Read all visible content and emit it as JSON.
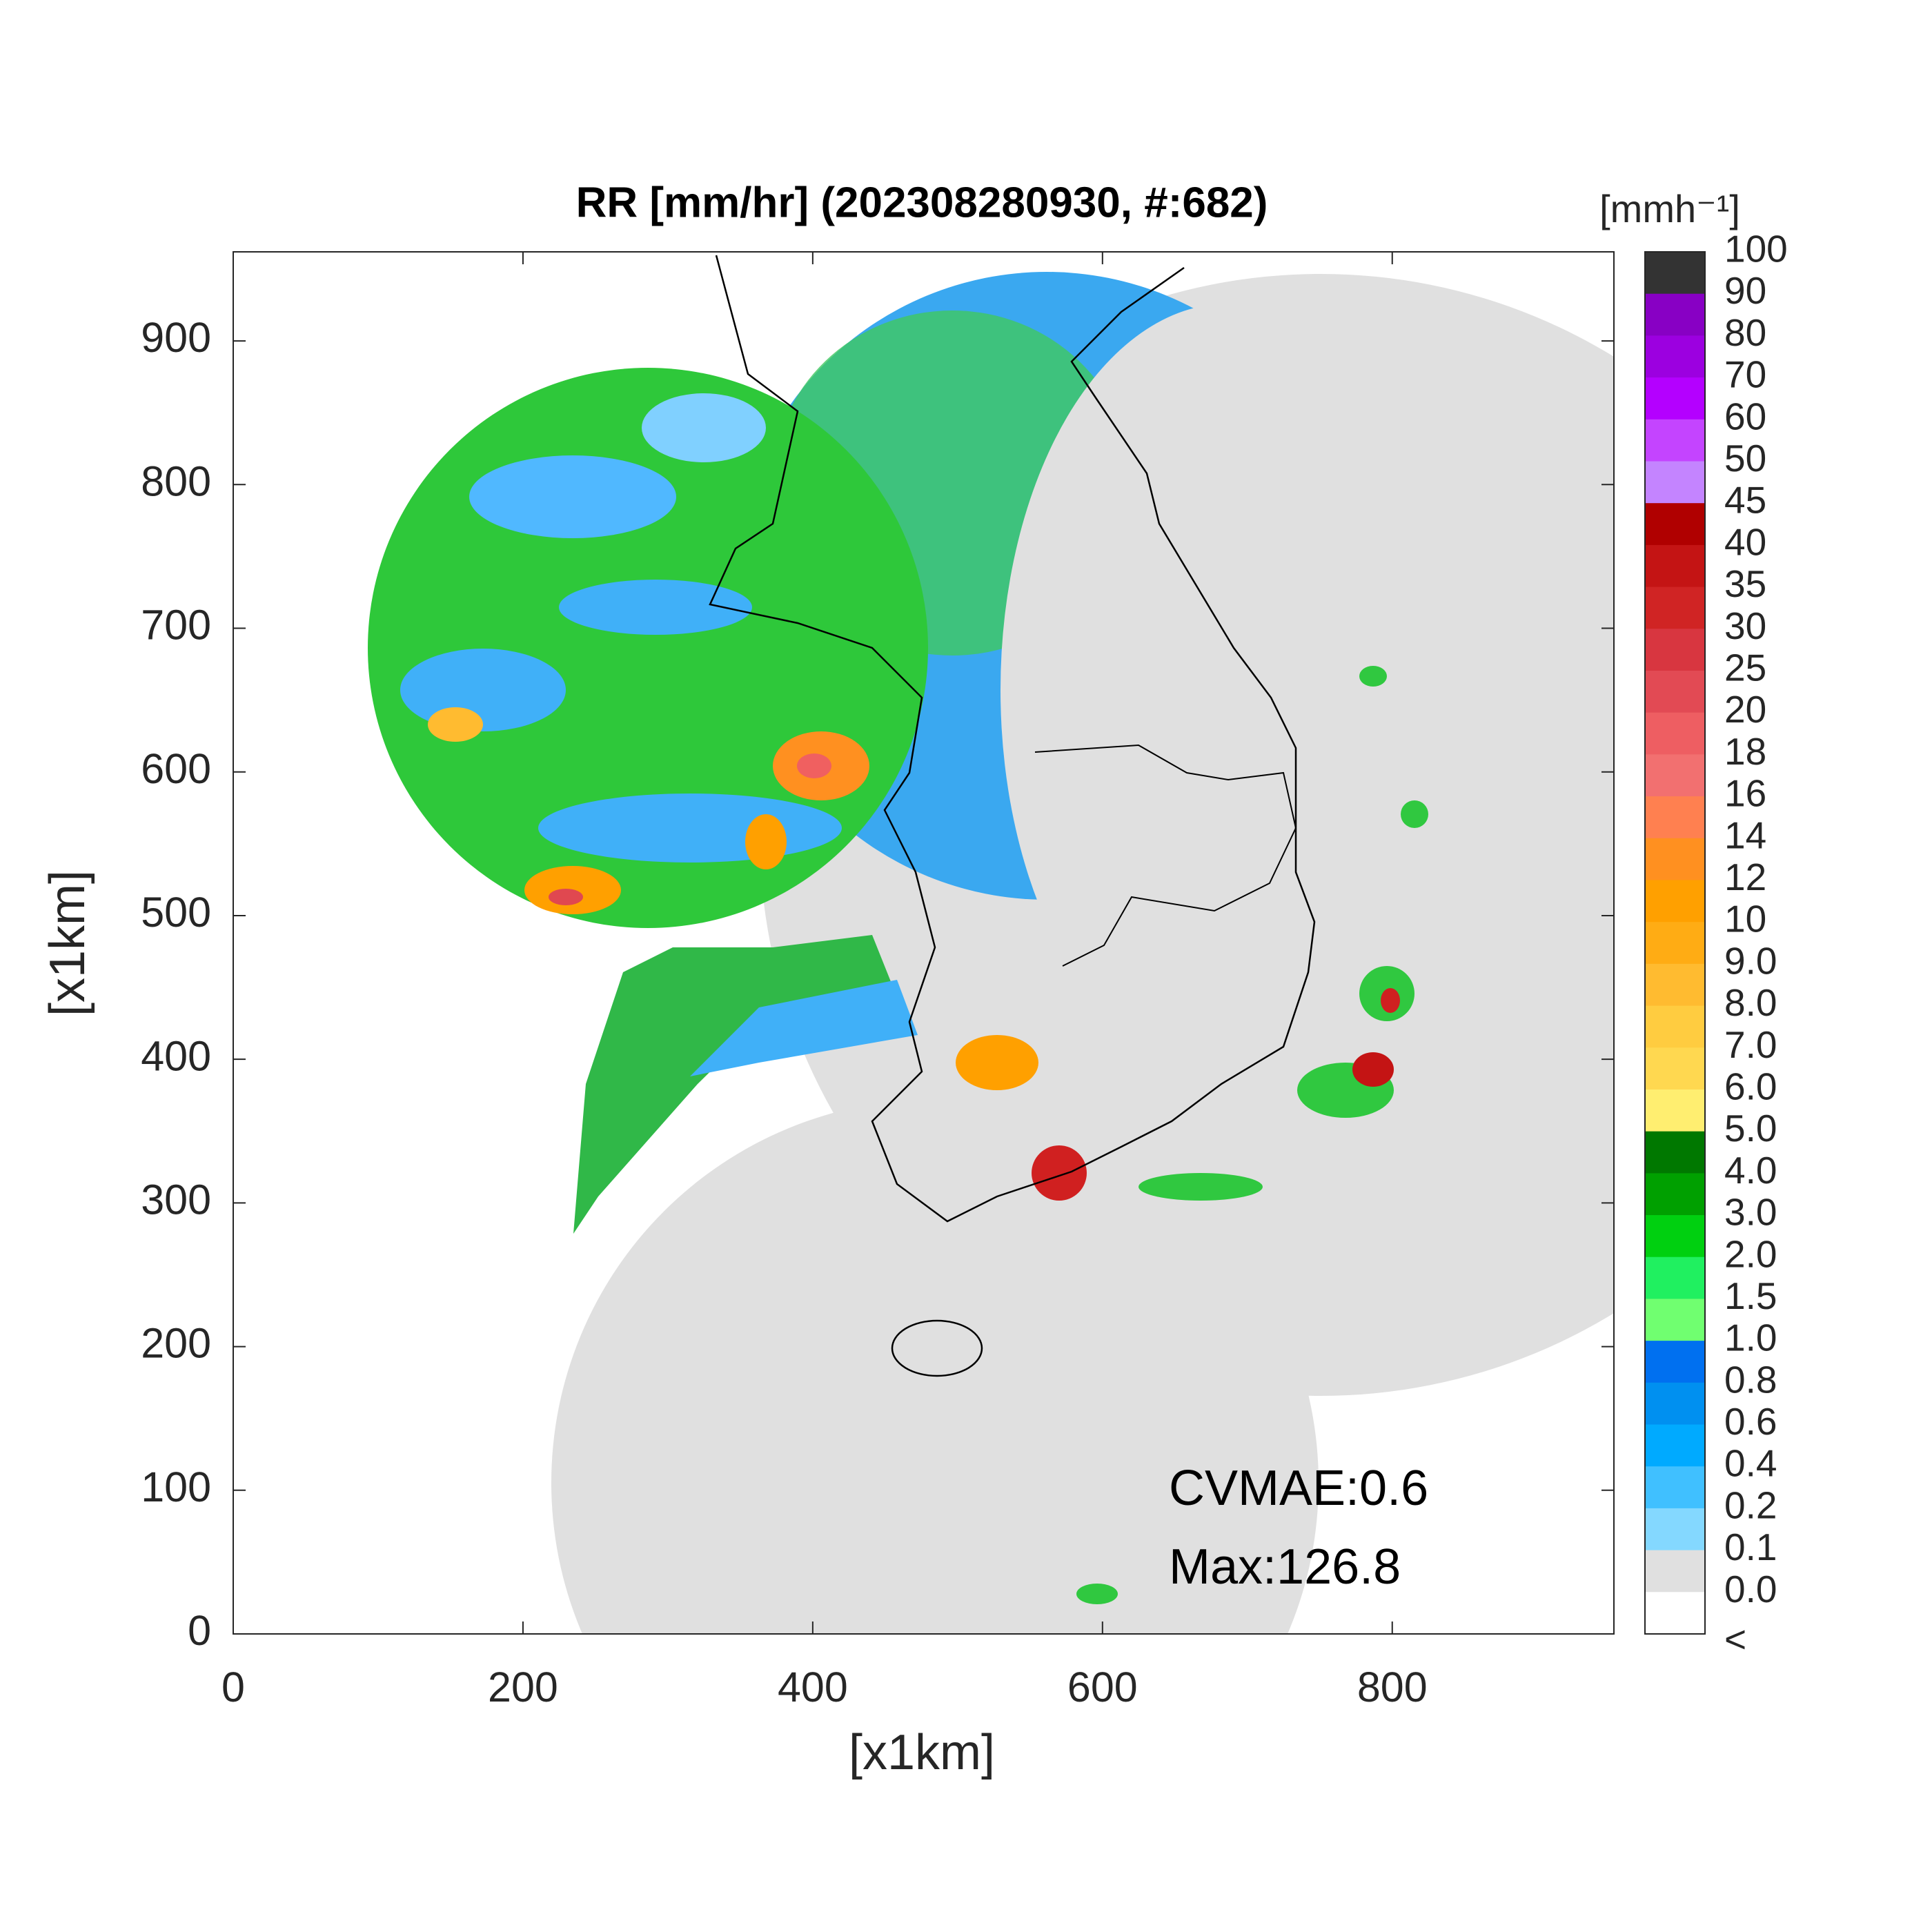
{
  "chart_data": {
    "type": "map",
    "title": "RR [mm/hr] (202308280930, #:682)",
    "xlabel": "[x1km]",
    "ylabel": "[x1km]",
    "xlim": [
      0,
      953
    ],
    "ylim": [
      0,
      962
    ],
    "xticks": [
      0,
      200,
      400,
      600,
      800
    ],
    "yticks": [
      0,
      100,
      200,
      300,
      400,
      500,
      600,
      700,
      800,
      900
    ],
    "annotations": [
      "CVMAE:0.6",
      "Max:126.8"
    ],
    "colorbar": {
      "title": "[mmh⁻¹]",
      "ticks": [
        100,
        90,
        80,
        70,
        60,
        50,
        45,
        40,
        35,
        30,
        25,
        20,
        18,
        16,
        14,
        12,
        10,
        {
          "value": 9,
          "label": "9.0"
        },
        {
          "value": 8,
          "label": "8.0"
        },
        {
          "value": 7,
          "label": "7.0"
        },
        {
          "value": 6,
          "label": "6.0"
        },
        {
          "value": 5,
          "label": "5.0"
        },
        {
          "value": 4,
          "label": "4.0"
        },
        {
          "value": 3,
          "label": "3.0"
        },
        {
          "value": 2,
          "label": "2.0"
        },
        1.5,
        {
          "value": 1,
          "label": "1.0"
        },
        0.8,
        0.6,
        0.4,
        0.2,
        0.1,
        {
          "value": 0,
          "label": "0.0"
        }
      ],
      "colors": [
        "#333333",
        "#8800c4",
        "#9c00e0",
        "#b400ff",
        "#c444ff",
        "#c484ff",
        "#b00000",
        "#c41414",
        "#d02424",
        "#d83640",
        "#e24a54",
        "#ee5e62",
        "#f27070",
        "#ff8050",
        "#ff9020",
        "#ffa000",
        "#ffac14",
        "#ffbb30",
        "#ffcc40",
        "#ffd850",
        "#ffee70",
        "#007800",
        "#00a000",
        "#00d010",
        "#20f060",
        "#70ff70",
        "#0070f0",
        "#0090f0",
        "#00aaff",
        "#40c0ff",
        "#84d8ff",
        "#e0e0e0"
      ],
      "below_label": "<",
      "below_color": "#ffffff"
    }
  }
}
